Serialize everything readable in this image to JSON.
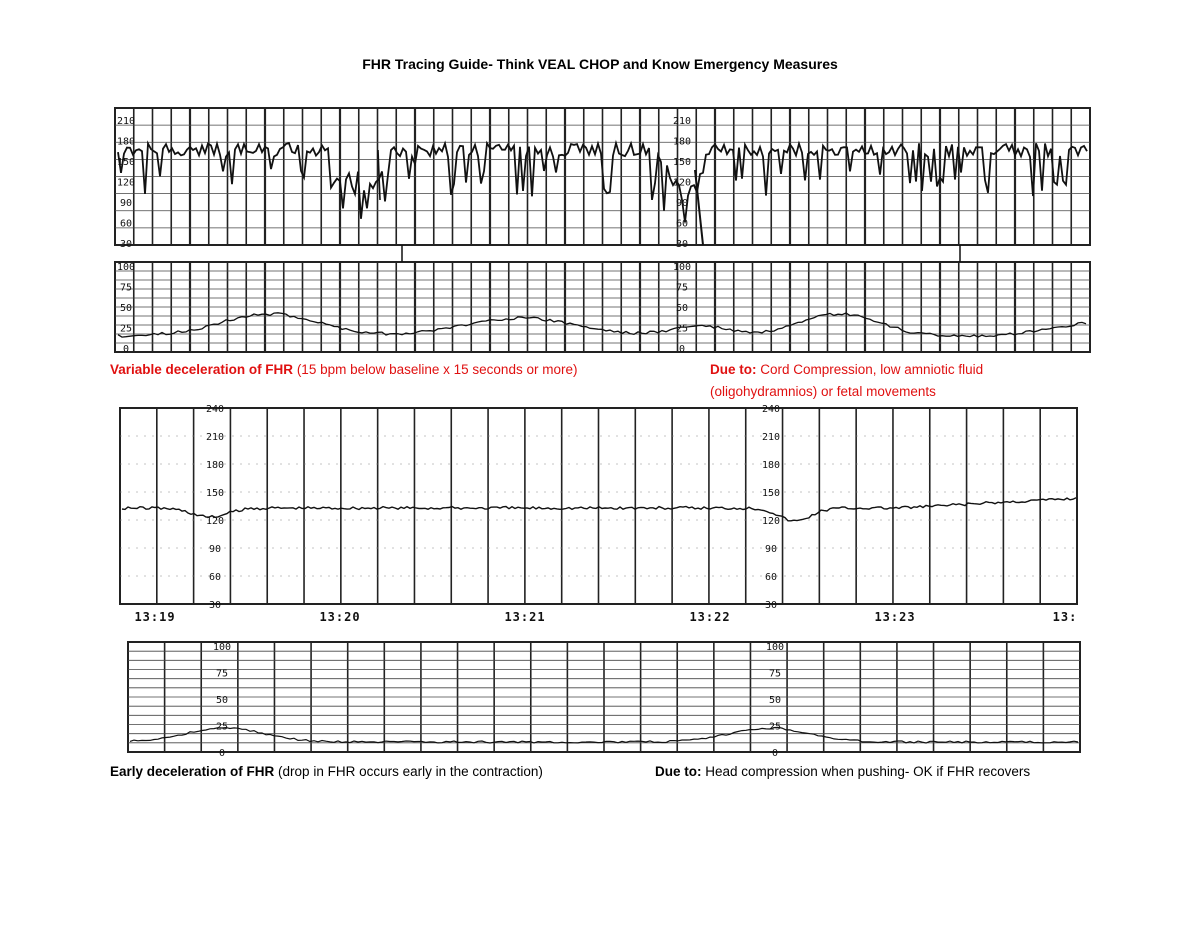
{
  "title": "FHR Tracing Guide- Think VEAL CHOP and Know Emergency Measures",
  "variable": {
    "label_bold": "Variable deceleration of FHR",
    "label_rest": " (15 bpm below baseline x 15 seconds or more)",
    "due_bold": "Due to:",
    "due_rest": " Cord Compression, low amniotic fluid",
    "due_line2": "(oligohydramnios) or fetal movements",
    "fhr_ticks": [
      "210",
      "180",
      "150",
      "120",
      "90",
      "60",
      "30"
    ],
    "uc_ticks": [
      "100",
      "75",
      "50",
      "25",
      "0"
    ]
  },
  "early": {
    "label_bold": "Early deceleration of FHR",
    "label_rest": " (drop in FHR occurs early in the contraction)",
    "due_bold": "Due to:",
    "due_rest": " Head compression when pushing- OK if FHR recovers",
    "fhr_ticks": [
      "240",
      "210",
      "180",
      "150",
      "120",
      "90",
      "60",
      "30"
    ],
    "uc_ticks": [
      "100",
      "75",
      "50",
      "25",
      "0"
    ],
    "time_labels": [
      "13:19",
      "13:20",
      "13:21",
      "13:22",
      "13:23",
      "13:"
    ]
  },
  "colors": {
    "caption_red": "#e01010",
    "grid": "#222222"
  }
}
